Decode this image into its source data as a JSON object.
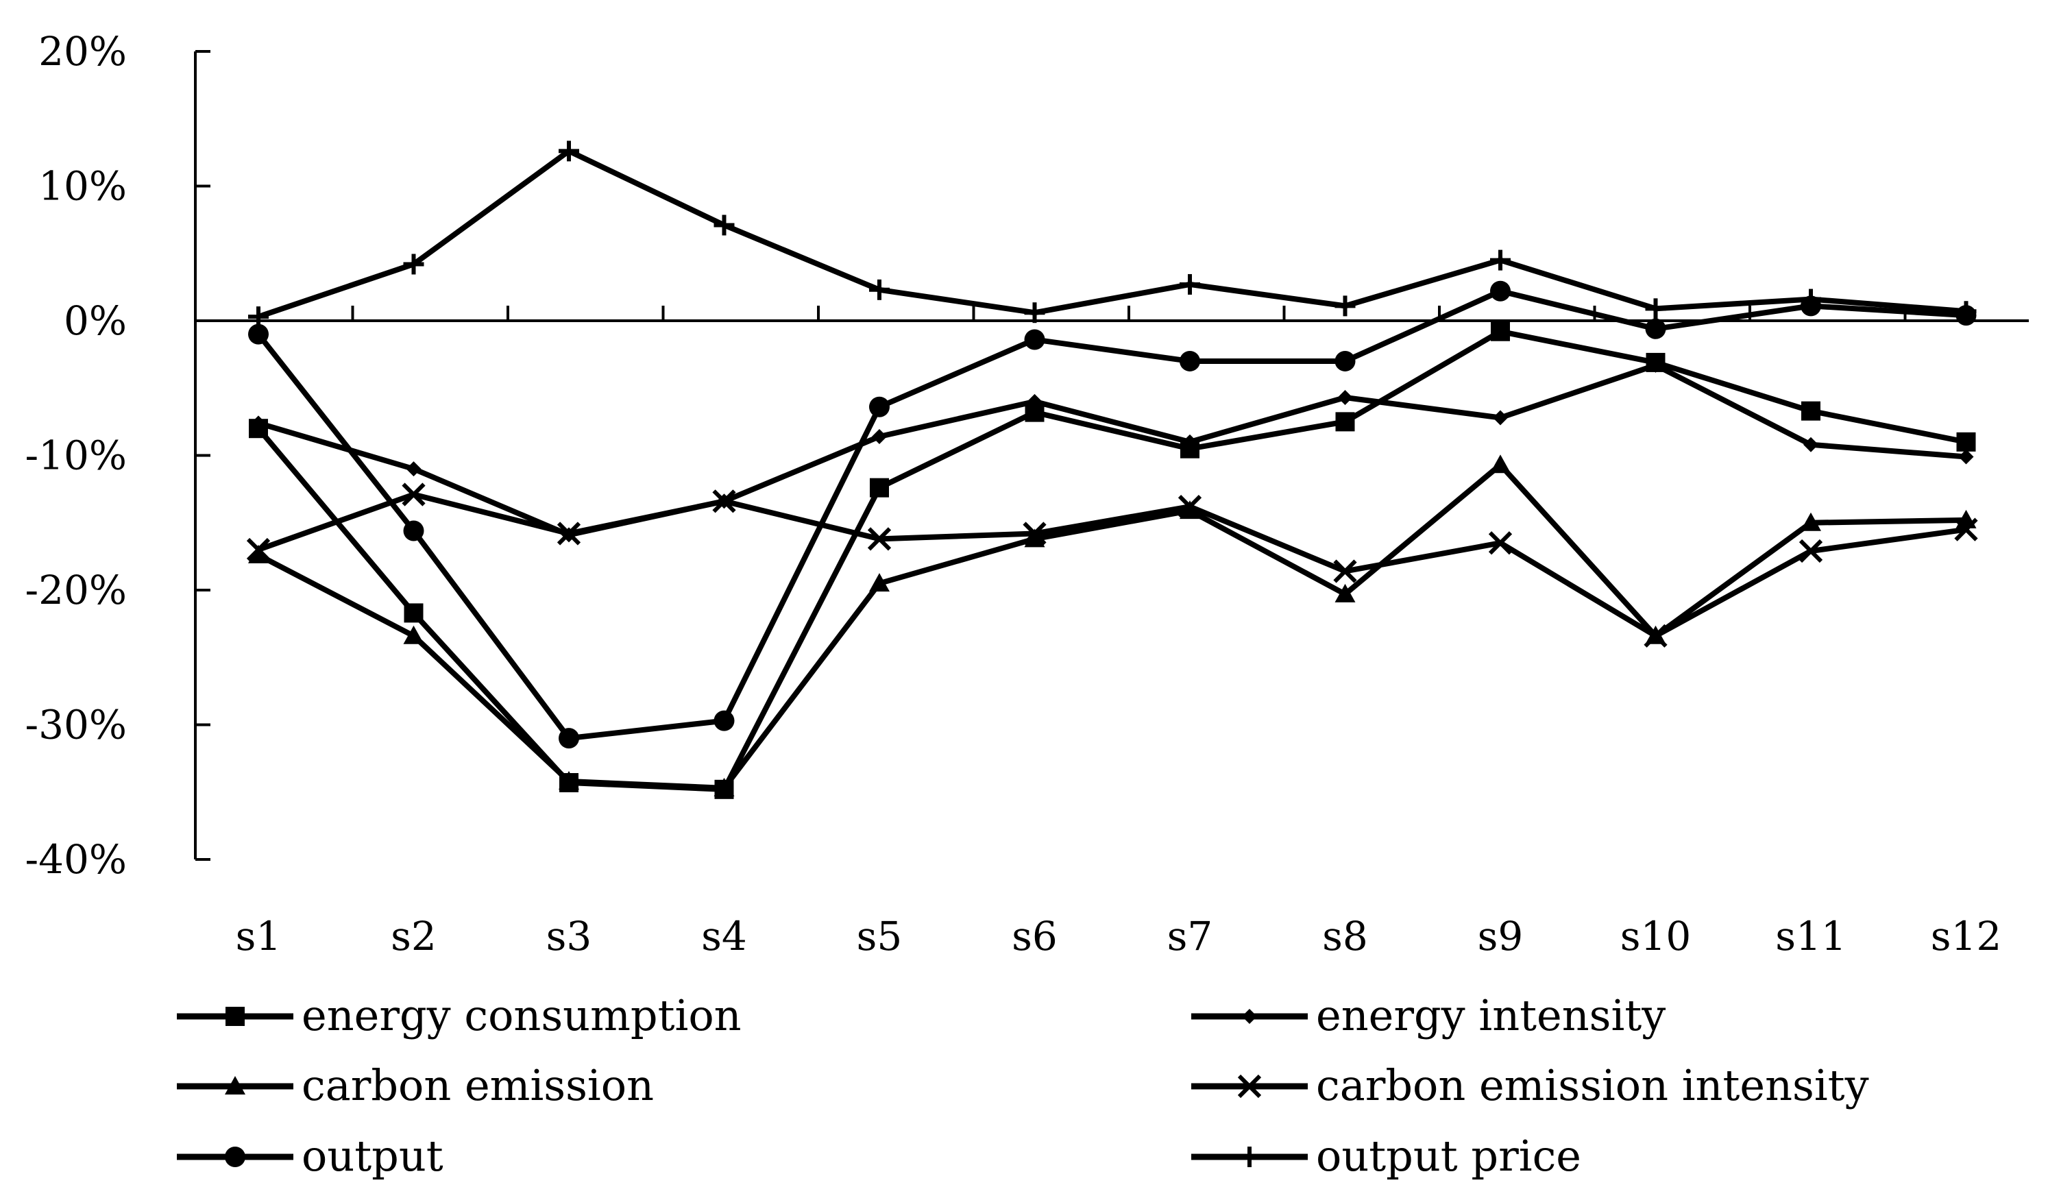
{
  "chart_data": {
    "type": "line",
    "title": "",
    "xlabel": "",
    "ylabel": "",
    "categories": [
      "s1",
      "s2",
      "s3",
      "s4",
      "s5",
      "s6",
      "s7",
      "s8",
      "s9",
      "s10",
      "s11",
      "s12"
    ],
    "ylim": [
      -40,
      20
    ],
    "yticks": [
      20,
      10,
      0,
      -10,
      -20,
      -30,
      -40
    ],
    "ytick_labels": [
      "20%",
      "10%",
      "0%",
      "-10%",
      "-20%",
      "-30%",
      "-40%"
    ],
    "grid": false,
    "legend_position": "bottom",
    "series": [
      {
        "name": "energy consumption",
        "marker": "square",
        "values": [
          -8.0,
          -21.7,
          -34.3,
          -34.8,
          -12.4,
          -6.8,
          -9.5,
          -7.5,
          -0.8,
          -3.1,
          -6.7,
          -9.0
        ]
      },
      {
        "name": "energy intensity",
        "marker": "diamond",
        "values": [
          -7.6,
          -11.0,
          -15.9,
          -13.4,
          -8.6,
          -6.0,
          -9.0,
          -5.7,
          -7.2,
          -3.3,
          -9.2,
          -10.1
        ]
      },
      {
        "name": "carbon emission",
        "marker": "triangle",
        "values": [
          -17.4,
          -23.4,
          -34.2,
          -34.7,
          -19.5,
          -16.2,
          -14.1,
          -20.3,
          -10.7,
          -23.4,
          -15.0,
          -14.8
        ]
      },
      {
        "name": "carbon emission intensity",
        "marker": "x",
        "values": [
          -17.0,
          -12.9,
          -15.8,
          -13.4,
          -16.2,
          -15.8,
          -13.8,
          -18.6,
          -16.5,
          -23.4,
          -17.1,
          -15.5
        ]
      },
      {
        "name": "output",
        "marker": "circle",
        "values": [
          -1.0,
          -15.6,
          -31.0,
          -29.7,
          -6.4,
          -1.4,
          -3.0,
          -3.0,
          2.2,
          -0.6,
          1.1,
          0.4
        ]
      },
      {
        "name": "output price",
        "marker": "plus",
        "values": [
          0.3,
          4.2,
          12.6,
          7.1,
          2.3,
          0.6,
          2.7,
          1.1,
          4.5,
          0.9,
          1.6,
          0.7
        ]
      }
    ]
  }
}
